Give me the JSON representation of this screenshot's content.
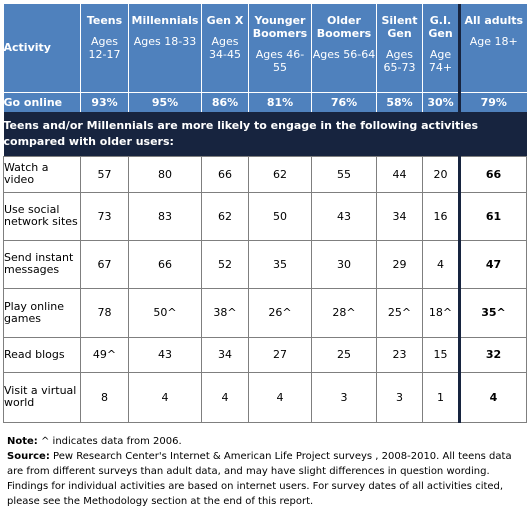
{
  "header": {
    "activity_label": "Activity",
    "generations": [
      {
        "name": "Teens",
        "ages": "Ages 12-17"
      },
      {
        "name": "Millennials",
        "ages": "Ages 18-33"
      },
      {
        "name": "Gen X",
        "ages": "Ages 34-45"
      },
      {
        "name": "Younger Boomers",
        "ages": "Ages 46-55"
      },
      {
        "name": "Older Boomers",
        "ages": "Ages 56-64"
      },
      {
        "name": "Silent Gen",
        "ages": "Ages 65-73"
      },
      {
        "name": "G.I. Gen",
        "ages": "Age 74+"
      },
      {
        "name": "All adults",
        "ages": "Age 18+"
      }
    ]
  },
  "go_online": {
    "label": "Go online",
    "values": [
      "93%",
      "95%",
      "86%",
      "81%",
      "76%",
      "58%",
      "30%",
      "79%"
    ]
  },
  "section_heading": "Teens and/or Millennials are more likely to engage in the following activities compared with older users:",
  "rows": [
    {
      "label": "Watch a video",
      "values": [
        "57",
        "80",
        "66",
        "62",
        "55",
        "44",
        "20",
        "66"
      ]
    },
    {
      "label": "Use social network sites",
      "values": [
        "73",
        "83",
        "62",
        "50",
        "43",
        "34",
        "16",
        "61"
      ]
    },
    {
      "label": "Send instant messages",
      "values": [
        "67",
        "66",
        "52",
        "35",
        "30",
        "29",
        "4",
        "47"
      ]
    },
    {
      "label": "Play online games",
      "values": [
        "78",
        "50^",
        "38^",
        "26^",
        "28^",
        "25^",
        "18^",
        "35^"
      ]
    },
    {
      "label": "Read blogs",
      "values": [
        "49^",
        "43",
        "34",
        "27",
        "25",
        "23",
        "15",
        "32"
      ]
    },
    {
      "label": "Visit a virtual world",
      "values": [
        "8",
        "4",
        "4",
        "4",
        "3",
        "3",
        "1",
        "4"
      ]
    }
  ],
  "notes": {
    "note_label": "Note:",
    "note_text": " ^ indicates data from 2006.",
    "source_label": "Source:",
    "source_text": " Pew Research Center's Internet & American Life Project surveys , 2008-2010. All teens data are from different surveys than adult data, and may have slight differences in question wording. Findings for individual activities are based on internet users. For survey dates of all activities cited, please see the Methodology section at the end of this report."
  },
  "colors": {
    "header_blue": "#4f81bd",
    "section_navy": "#17243f"
  }
}
